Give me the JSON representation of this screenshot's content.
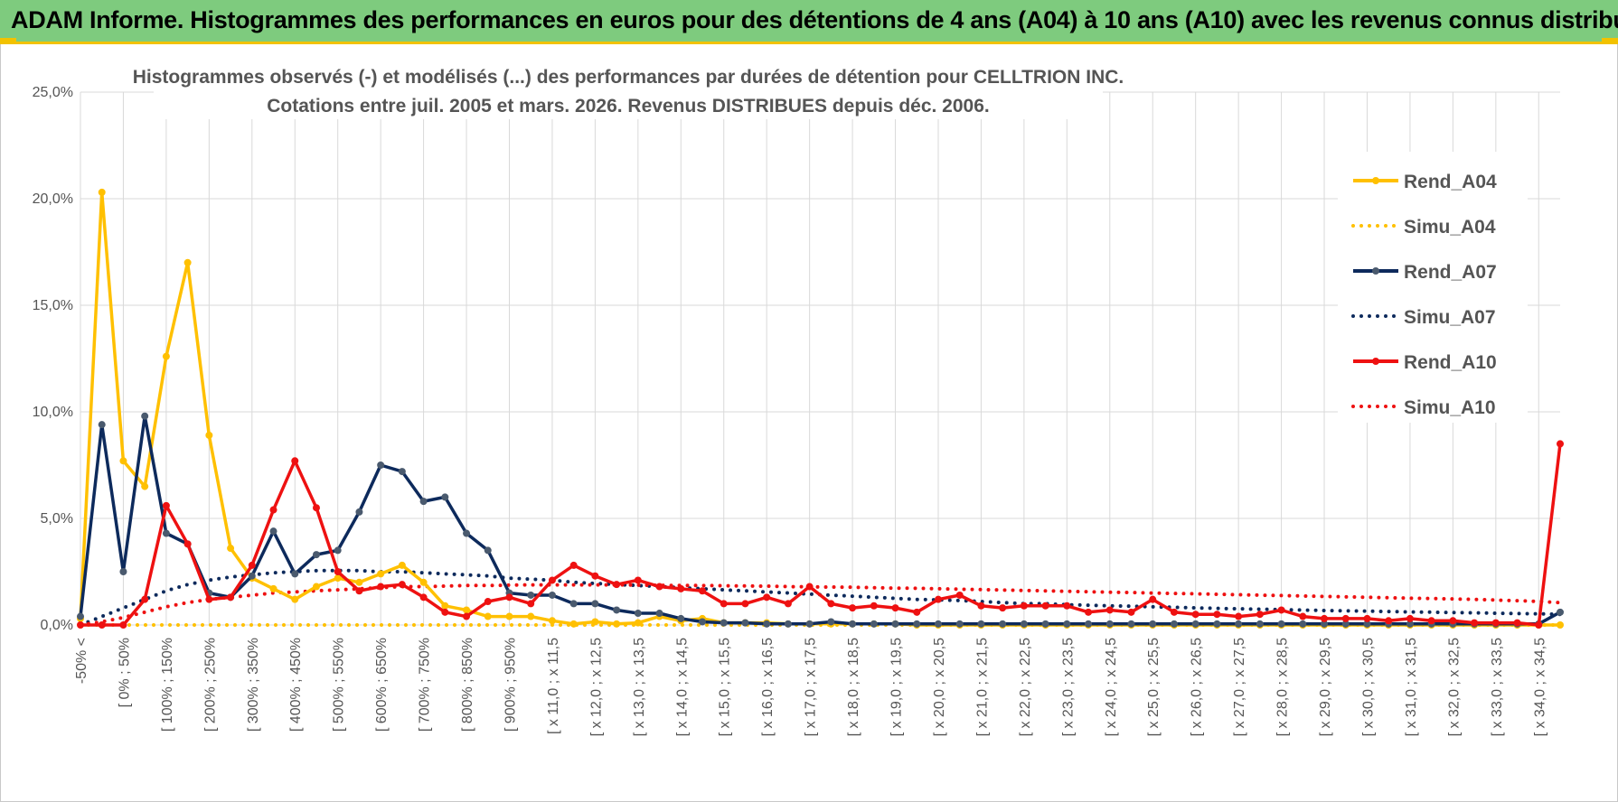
{
  "banner": {
    "title": "ADAM Informe. Histogrammes des performances en euros pour des détentions de 4 ans (A04) à 10 ans (A10) avec les revenus connus distribués"
  },
  "chart_data": {
    "type": "line",
    "title": "Histogrammes observés (-) et modélisés (...) des performances par durées de détention pour CELLTRION INC.",
    "subtitle": "Cotations entre juil. 2005 et mars. 2026.  Revenus DISTRIBUES depuis déc. 2006.",
    "ylim": [
      0,
      25
    ],
    "y_ticks": [
      "0,0%",
      "5,0%",
      "10,0%",
      "15,0%",
      "20,0%",
      "25,0%"
    ],
    "grid": true,
    "legend_position": "right",
    "n_categories": 70,
    "x_tick_labels": [
      "-50% <",
      "[ 0% ; 50%",
      "[ 100% ; 150%",
      "[ 200% ; 250%",
      "[ 300% ; 350%",
      "[ 400% ; 450%",
      "[ 500% ; 550%",
      "[ 600% ; 650%",
      "[ 700% ; 750%",
      "[ 800% ; 850%",
      "[ 900% ; 950%",
      "[ x 11,0 ; x 11,5",
      "[ x 12,0 ; x 12,5",
      "[ x 13,0 ; x 13,5",
      "[ x 14,0 ; x 14,5",
      "[ x 15,0 ; x 15,5",
      "[ x 16,0 ; x 16,5",
      "[ x 17,0 ; x 17,5",
      "[ x 18,0 ; x 18,5",
      "[ x 19,0 ; x 19,5",
      "[ x 20,0 ; x 20,5",
      "[ x 21,0 ; x 21,5",
      "[ x 22,0 ; x 22,5",
      "[ x 23,0 ; x 23,5",
      "[ x 24,0 ; x 24,5",
      "[ x 25,0 ; x 25,5",
      "[ x 26,0 ; x 26,5",
      "[ x 27,0 ; x 27,5",
      "[ x 28,0 ; x 28,5",
      "[ x 29,0 ; x 29,5",
      "[ x 30,0 ; x 30,5",
      "[ x 31,0 ; x 31,5",
      "[ x 32,0 ; x 32,5",
      "[ x 33,0 ; x 33,5",
      "[ x 34,0 ; x 34,5"
    ],
    "series": [
      {
        "name": "Rend_A04",
        "color": "#ffc000",
        "style": "solid",
        "markers": true,
        "values": [
          0.3,
          20.3,
          7.7,
          6.5,
          12.6,
          17.0,
          8.9,
          3.6,
          2.2,
          1.7,
          1.2,
          1.8,
          2.2,
          2.0,
          2.4,
          2.8,
          2.0,
          0.9,
          0.7,
          0.4,
          0.4,
          0.4,
          0.2,
          0.05,
          0.15,
          0.05,
          0.1,
          0.4,
          0.2,
          0.3,
          0.1,
          0.1,
          0.1,
          0.05,
          0.05,
          0.05,
          0.05,
          0.05,
          0.05,
          0,
          0,
          0,
          0,
          0,
          0,
          0,
          0,
          0,
          0,
          0,
          0,
          0,
          0,
          0,
          0,
          0,
          0,
          0,
          0,
          0,
          0,
          0,
          0,
          0,
          0,
          0,
          0,
          0,
          0,
          0
        ]
      },
      {
        "name": "Simu_A04",
        "color": "#ffc000",
        "style": "dotted",
        "markers": false,
        "values": [
          0,
          0,
          0,
          0,
          0,
          0,
          0,
          0,
          0,
          0,
          0,
          0,
          0,
          0,
          0,
          0,
          0,
          0,
          0,
          0,
          0,
          0,
          0,
          0,
          0,
          0,
          0,
          0,
          0,
          0,
          0,
          0,
          0,
          0,
          0,
          0,
          0,
          0,
          0,
          0,
          0,
          0,
          0,
          0,
          0,
          0,
          0,
          0,
          0,
          0,
          0,
          0,
          0,
          0,
          0,
          0,
          0,
          0,
          0,
          0,
          0,
          0,
          0,
          0,
          0,
          0,
          0,
          0,
          0,
          0
        ]
      },
      {
        "name": "Rend_A07",
        "color": "#0d2a5c",
        "style": "solid",
        "markers": true,
        "values": [
          0.4,
          9.4,
          2.5,
          9.8,
          4.3,
          3.8,
          1.5,
          1.3,
          2.3,
          4.4,
          2.4,
          3.3,
          3.5,
          5.3,
          7.5,
          7.2,
          5.8,
          6.0,
          4.3,
          3.5,
          1.5,
          1.4,
          1.4,
          1.0,
          1.0,
          0.7,
          0.55,
          0.55,
          0.3,
          0.15,
          0.1,
          0.1,
          0.05,
          0.05,
          0.05,
          0.15,
          0.05,
          0.05,
          0.05,
          0.05,
          0.05,
          0.05,
          0.05,
          0.05,
          0.05,
          0.05,
          0.05,
          0.05,
          0.05,
          0.05,
          0.05,
          0.05,
          0.05,
          0.05,
          0.05,
          0.05,
          0.05,
          0.05,
          0.05,
          0.05,
          0.05,
          0.05,
          0.05,
          0.05,
          0.05,
          0.05,
          0.05,
          0.05,
          0.05,
          0.6
        ]
      },
      {
        "name": "Simu_A07",
        "color": "#0d2a5c",
        "style": "dotted",
        "markers": false,
        "values": [
          0,
          0.4,
          0.8,
          1.2,
          1.6,
          1.9,
          2.1,
          2.25,
          2.35,
          2.45,
          2.5,
          2.55,
          2.55,
          2.55,
          2.5,
          2.5,
          2.45,
          2.4,
          2.35,
          2.3,
          2.2,
          2.15,
          2.1,
          2.0,
          1.95,
          1.9,
          1.85,
          1.8,
          1.75,
          1.7,
          1.65,
          1.6,
          1.55,
          1.5,
          1.45,
          1.4,
          1.35,
          1.3,
          1.25,
          1.2,
          1.18,
          1.15,
          1.1,
          1.05,
          1.0,
          1.0,
          0.95,
          0.93,
          0.9,
          0.88,
          0.85,
          0.83,
          0.8,
          0.78,
          0.76,
          0.74,
          0.72,
          0.7,
          0.68,
          0.66,
          0.65,
          0.63,
          0.61,
          0.6,
          0.58,
          0.57,
          0.55,
          0.54,
          0.52,
          0.5
        ]
      },
      {
        "name": "Rend_A10",
        "color": "#ee1111",
        "style": "solid",
        "markers": true,
        "values": [
          0,
          0,
          0,
          1.2,
          5.6,
          3.8,
          1.2,
          1.3,
          2.8,
          5.4,
          7.7,
          5.5,
          2.5,
          1.6,
          1.8,
          1.9,
          1.3,
          0.6,
          0.4,
          1.1,
          1.3,
          1.0,
          2.1,
          2.8,
          2.3,
          1.9,
          2.1,
          1.8,
          1.7,
          1.6,
          1.0,
          1.0,
          1.3,
          1.0,
          1.8,
          1.0,
          0.8,
          0.9,
          0.8,
          0.6,
          1.2,
          1.4,
          0.9,
          0.8,
          0.9,
          0.9,
          0.9,
          0.6,
          0.7,
          0.6,
          1.2,
          0.6,
          0.5,
          0.5,
          0.4,
          0.5,
          0.7,
          0.4,
          0.3,
          0.3,
          0.3,
          0.2,
          0.3,
          0.2,
          0.2,
          0.1,
          0.1,
          0.1,
          0,
          8.5
        ]
      },
      {
        "name": "Simu_A10",
        "color": "#ee1111",
        "style": "dotted",
        "markers": false,
        "values": [
          0,
          0.15,
          0.35,
          0.6,
          0.85,
          1.05,
          1.2,
          1.3,
          1.4,
          1.5,
          1.55,
          1.6,
          1.65,
          1.7,
          1.75,
          1.8,
          1.8,
          1.82,
          1.85,
          1.85,
          1.87,
          1.88,
          1.88,
          1.88,
          1.88,
          1.88,
          1.87,
          1.86,
          1.85,
          1.85,
          1.84,
          1.83,
          1.82,
          1.8,
          1.79,
          1.78,
          1.77,
          1.75,
          1.73,
          1.72,
          1.7,
          1.68,
          1.66,
          1.64,
          1.62,
          1.6,
          1.58,
          1.56,
          1.54,
          1.52,
          1.5,
          1.48,
          1.46,
          1.44,
          1.42,
          1.4,
          1.38,
          1.36,
          1.34,
          1.32,
          1.3,
          1.28,
          1.26,
          1.24,
          1.22,
          1.2,
          1.17,
          1.14,
          1.1,
          1.05
        ]
      }
    ]
  }
}
